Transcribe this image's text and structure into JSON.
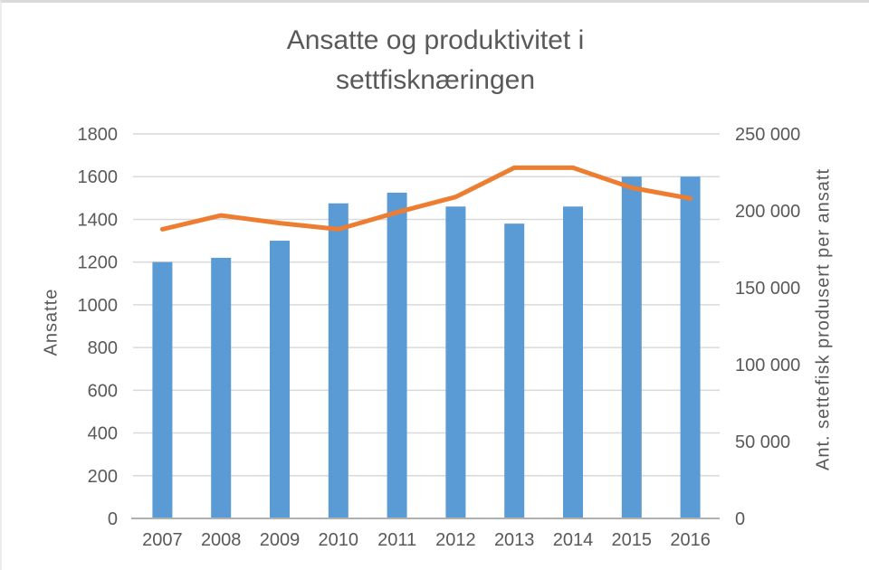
{
  "title": {
    "line1": "Ansatte og produktivitet i",
    "line2": "settfisknæringen"
  },
  "chart_data": {
    "type": "bar",
    "subtype": "combo-bar-line",
    "title": "Ansatte og produktivitet i settfisknæringen",
    "categories": [
      "2007",
      "2008",
      "2009",
      "2010",
      "2011",
      "2012",
      "2013",
      "2014",
      "2015",
      "2016"
    ],
    "series": [
      {
        "name": "Ansatte",
        "type": "bar",
        "axis": "left",
        "color": "#5b9bd5",
        "values": [
          1200,
          1220,
          1300,
          1475,
          1525,
          1460,
          1380,
          1460,
          1600,
          1600
        ]
      },
      {
        "name": "Ant. settefisk produsert per ansatt",
        "type": "line",
        "axis": "right",
        "color": "#ed7d31",
        "values": [
          188000,
          197000,
          192000,
          188000,
          199000,
          209000,
          228000,
          228000,
          215000,
          208000
        ]
      }
    ],
    "left_axis": {
      "title": "Ansatte",
      "min": 0,
      "max": 1800,
      "tick_step": 200,
      "ticks": [
        0,
        200,
        400,
        600,
        800,
        1000,
        1200,
        1400,
        1600,
        1800
      ],
      "tick_labels": [
        "0",
        "200",
        "400",
        "600",
        "800",
        "1000",
        "1200",
        "1400",
        "1600",
        "1800"
      ]
    },
    "right_axis": {
      "title": "Ant. settefisk produsert per ansatt",
      "min": 0,
      "max": 250000,
      "tick_step": 50000,
      "ticks": [
        0,
        50000,
        100000,
        150000,
        200000,
        250000
      ],
      "tick_labels": [
        "0",
        "50 000",
        "100 000",
        "150 000",
        "200 000",
        "250 000"
      ]
    },
    "grid": true,
    "legend": "none"
  },
  "colors": {
    "bar": "#5b9bd5",
    "line": "#ed7d31",
    "text": "#595959",
    "gridline": "#d9d9d9",
    "axis_line": "#b0b0b0",
    "background": "#ffffff",
    "top_edge": "#d9d9d9"
  }
}
